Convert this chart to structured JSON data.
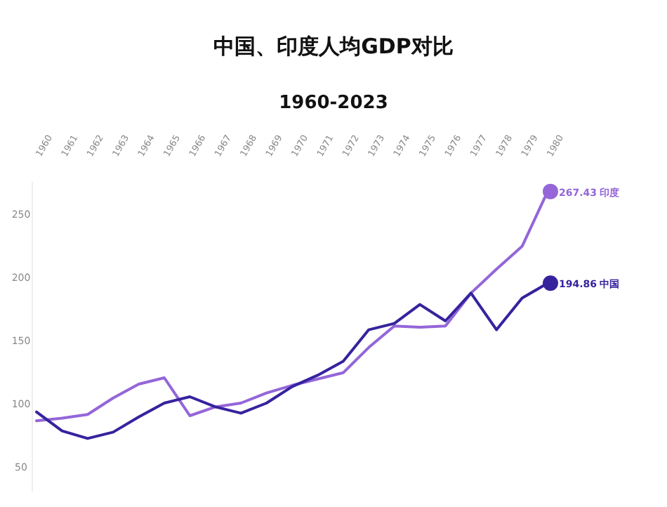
{
  "chart_data": {
    "type": "line",
    "title": "中国、印度人均GDP对比",
    "subtitle": "1960-2023",
    "categories": [
      "1960",
      "1961",
      "1962",
      "1963",
      "1964",
      "1965",
      "1966",
      "1967",
      "1968",
      "1969",
      "1970",
      "1971",
      "1972",
      "1973",
      "1974",
      "1975",
      "1976",
      "1977",
      "1978",
      "1979",
      "1980"
    ],
    "series": [
      {
        "name": "印度",
        "color": "#9466d8",
        "values": [
          86,
          88,
          91,
          104,
          115,
          120,
          90,
          97,
          100,
          108,
          114,
          119,
          124,
          144,
          161,
          160,
          161,
          187,
          206,
          224,
          267.43
        ],
        "value_labels": [
          null,
          null,
          null,
          null,
          null,
          null,
          null,
          null,
          null,
          null,
          null,
          null,
          null,
          null,
          null,
          null,
          null,
          null,
          null,
          null,
          "267.43"
        ]
      },
      {
        "name": "中国",
        "color": "#35239e",
        "values": [
          93,
          78,
          72,
          77,
          89,
          100,
          105,
          97,
          92,
          100,
          113,
          122,
          133,
          158,
          163,
          178,
          165,
          187,
          158,
          183,
          194.86
        ],
        "value_labels": [
          null,
          null,
          null,
          null,
          null,
          null,
          null,
          null,
          null,
          null,
          null,
          null,
          null,
          null,
          null,
          null,
          null,
          null,
          null,
          null,
          "194.86"
        ]
      }
    ],
    "ylim": [
      30,
      275
    ],
    "yticks": [
      50,
      100,
      150,
      200,
      250
    ],
    "grid": false,
    "legend": "right"
  }
}
